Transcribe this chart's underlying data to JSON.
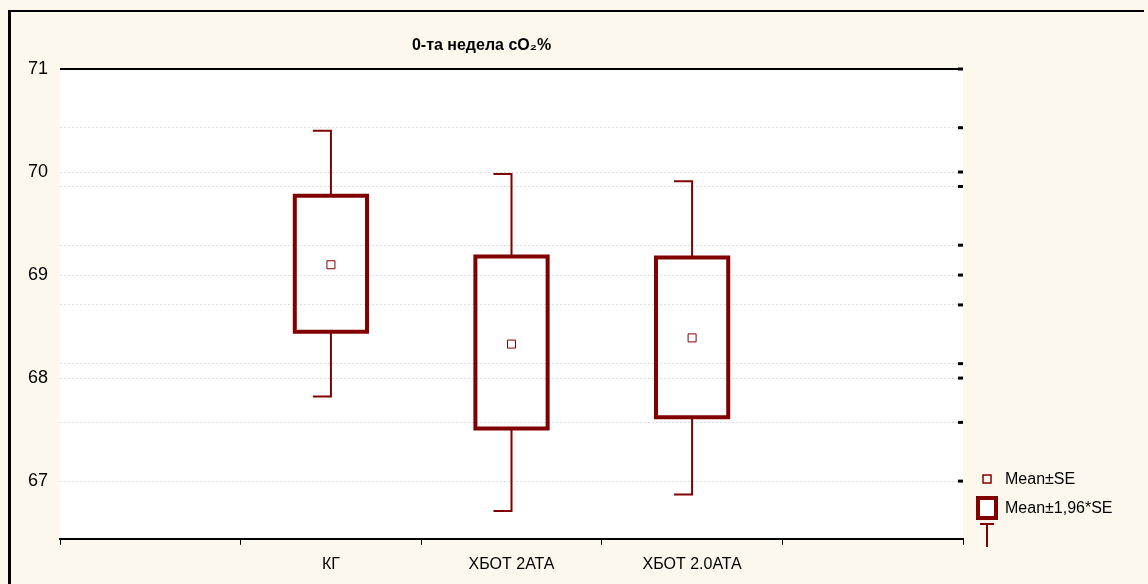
{
  "chart_data": {
    "type": "box",
    "title": "0-та недела cO₂%",
    "categories": [
      null,
      "КГ",
      "ХБОТ 2АТА",
      "ХБОТ 2.0АТА",
      null
    ],
    "color": "#800000",
    "boxes": [
      null,
      {
        "low": 67.82,
        "q1": 68.45,
        "median": 69.1,
        "q3": 69.77,
        "high": 70.4
      },
      {
        "low": 66.71,
        "q1": 67.51,
        "median": 68.33,
        "q3": 69.18,
        "high": 69.98
      },
      {
        "low": 66.87,
        "q1": 67.62,
        "median": 68.39,
        "q3": 69.17,
        "high": 69.91
      },
      null
    ],
    "ylim": [
      66.44,
      71
    ],
    "yticks": [
      67,
      {
        "value": 67.57,
        "label": null
      },
      {
        "value": 68.14,
        "label": null
      },
      68,
      {
        "value": 68.71,
        "label": null
      },
      69,
      {
        "value": 69.29,
        "label": null
      },
      {
        "value": 69.86,
        "label": null
      },
      70,
      {
        "value": 70.43,
        "label": null
      },
      71
    ],
    "grid": "y",
    "annotations": [
      "Mean±SE",
      "Mean±1,96*SE"
    ]
  }
}
